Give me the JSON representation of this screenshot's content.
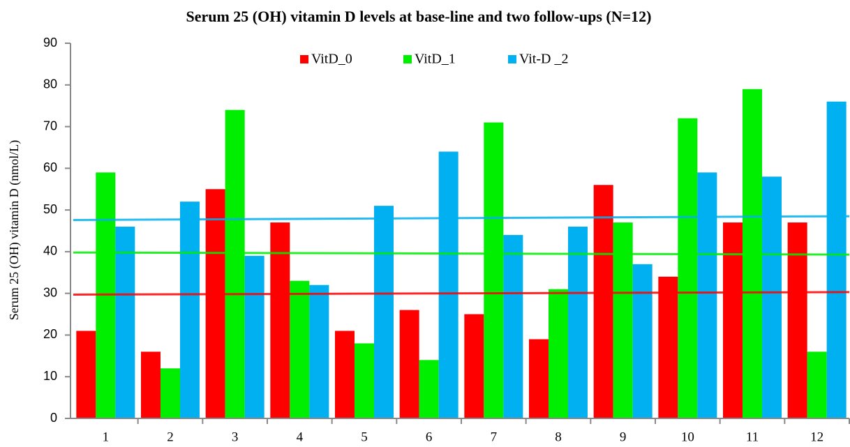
{
  "chart_data": {
    "type": "bar",
    "title": "Serum 25 (OH) vitamin D levels at base-line and two follow-ups (N=12)",
    "y_label": "Serum 25 (OH) vitamin D (nmol/L)",
    "categories": [
      "1",
      "2",
      "3",
      "4",
      "5",
      "6",
      "7",
      "8",
      "9",
      "10",
      "11",
      "12"
    ],
    "series": [
      {
        "name": "VitD_0",
        "color": "#ff0000",
        "values": [
          21,
          16,
          55,
          47,
          21,
          26,
          25,
          19,
          56,
          34,
          47,
          47
        ],
        "trend": [
          29.7,
          30.3
        ]
      },
      {
        "name": "VitD_1",
        "color": "#00ee00",
        "values": [
          59,
          12,
          74,
          33,
          18,
          14,
          71,
          31,
          47,
          72,
          79,
          16
        ],
        "trend": [
          39.8,
          39.3
        ]
      },
      {
        "name": "Vit-D _2",
        "color": "#00b0f0",
        "values": [
          46,
          52,
          39,
          32,
          51,
          64,
          44,
          46,
          37,
          59,
          58,
          76
        ],
        "trend": [
          47.6,
          48.5
        ]
      }
    ],
    "ylim": [
      0,
      90
    ],
    "yticks": [
      0,
      10,
      20,
      30,
      40,
      50,
      60,
      70,
      80,
      90
    ],
    "legend": "top",
    "grid": false
  }
}
